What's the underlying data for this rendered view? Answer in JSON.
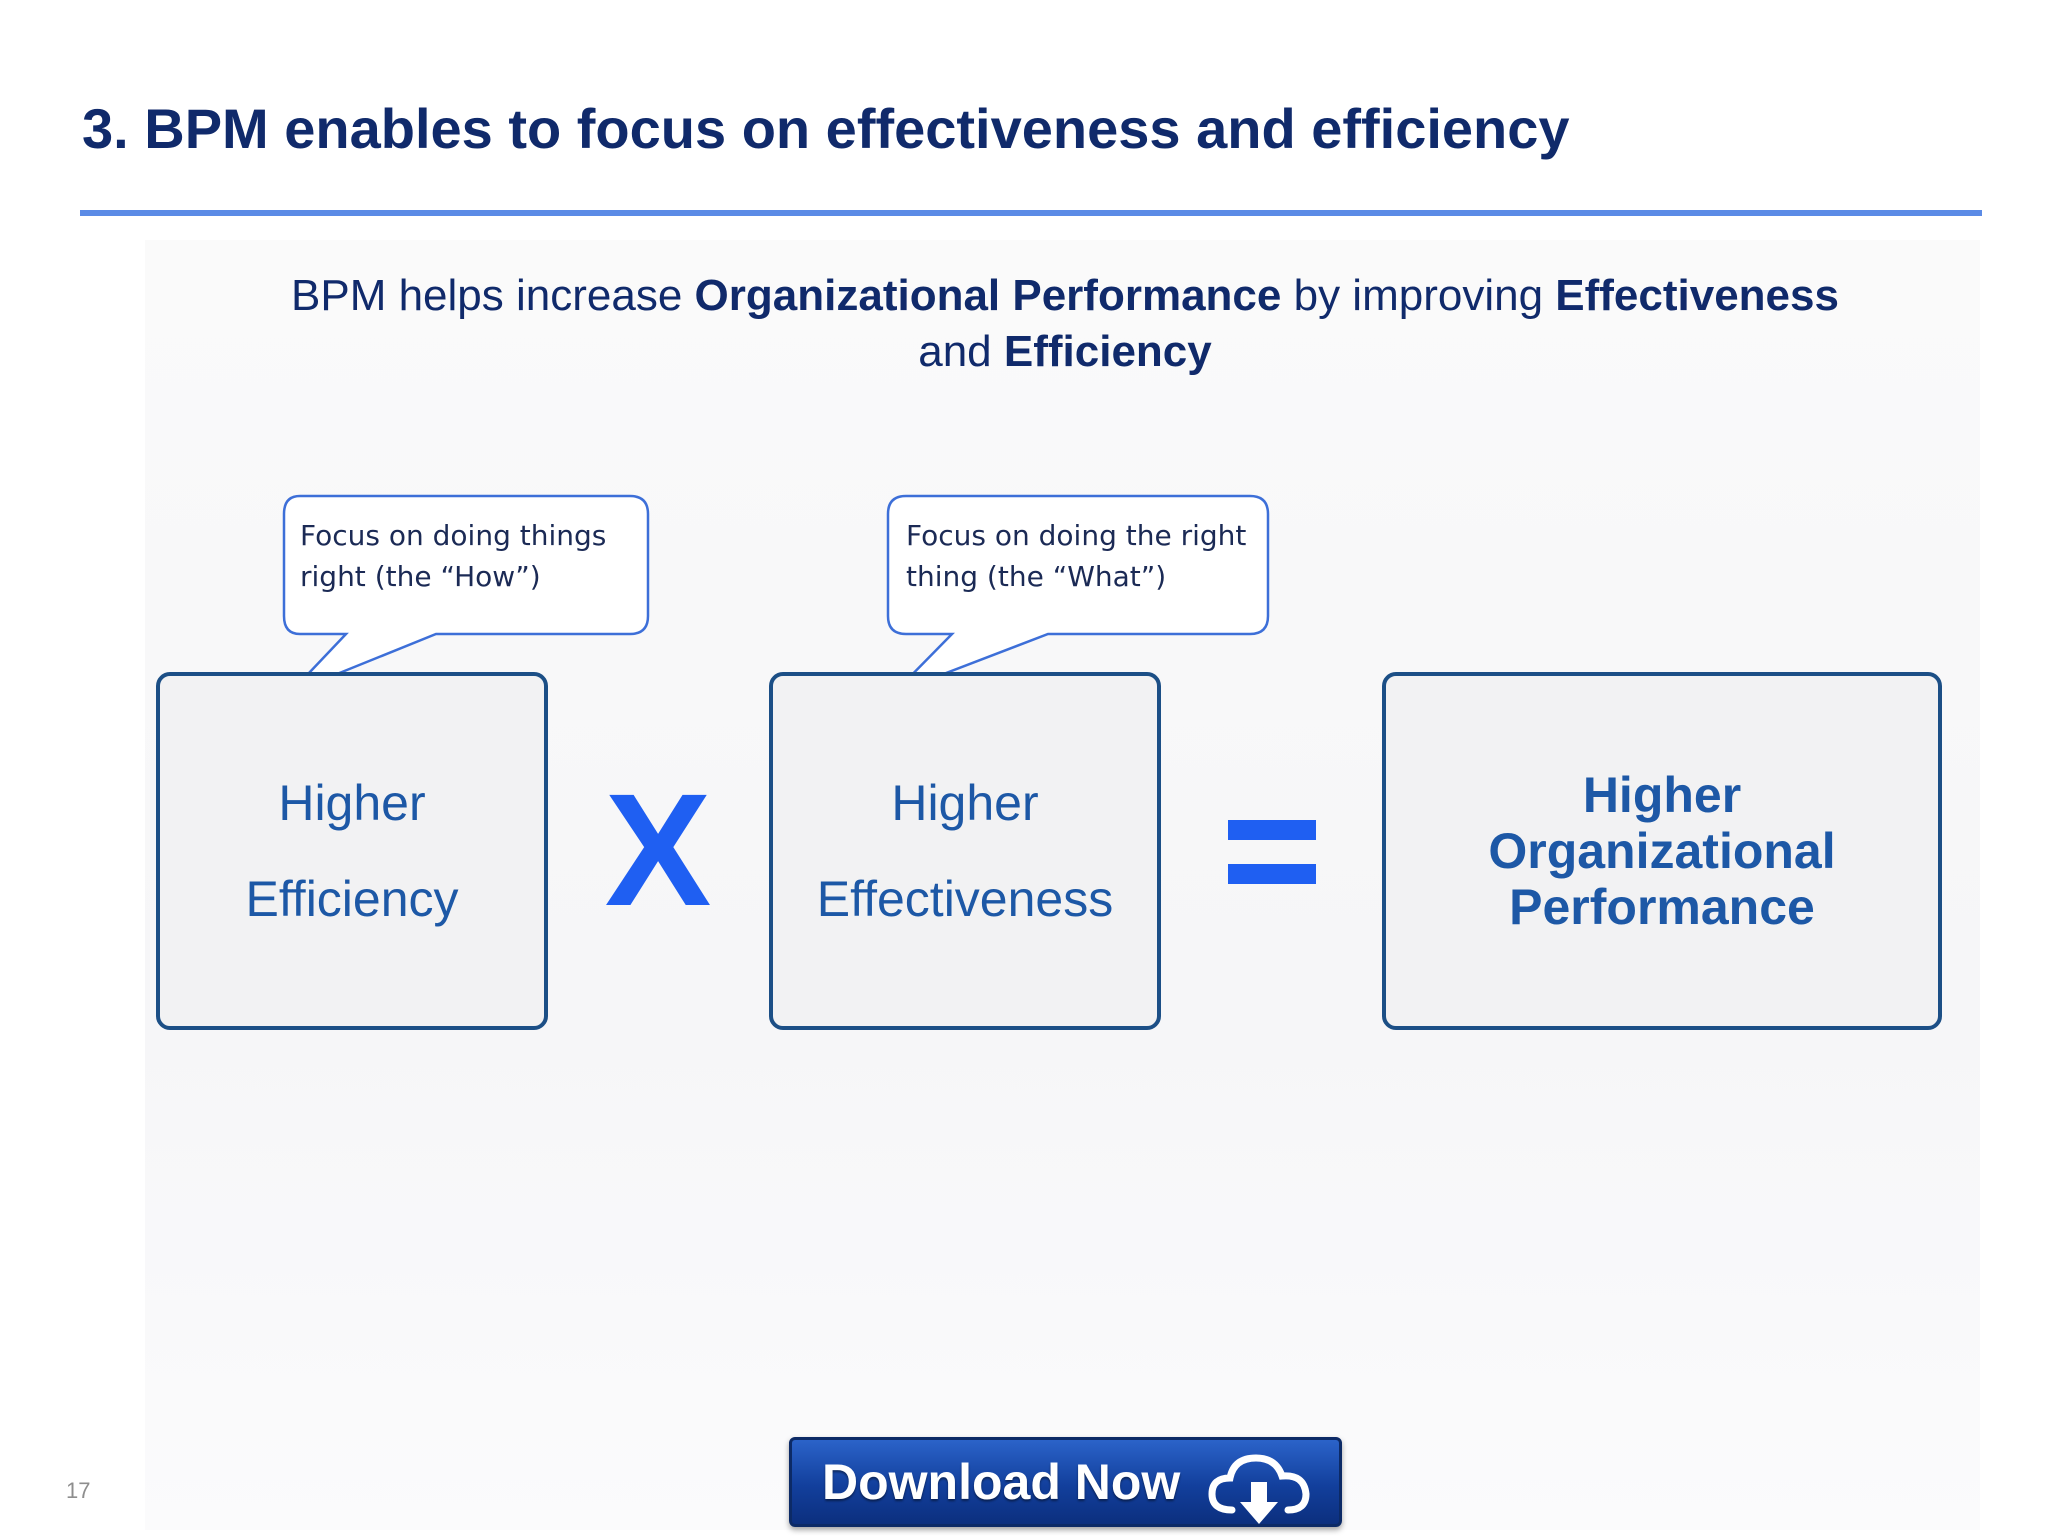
{
  "title": "3. BPM enables to focus on effectiveness and efficiency",
  "subtitle": {
    "part1": "BPM helps increase ",
    "bold1": "Organizational Performance",
    "part2": " by improving ",
    "bold2": "Effectiveness",
    "part3": "and ",
    "bold3": "Efficiency"
  },
  "callouts": [
    {
      "line1": "Focus on doing things",
      "line2": "right (the “How”)"
    },
    {
      "line1": "Focus on doing the right",
      "line2": "thing (the “What”)"
    }
  ],
  "boxes": {
    "efficiency": {
      "line1": "Higher",
      "line2": "Efficiency"
    },
    "effectiveness": {
      "line1": "Higher",
      "line2": "Effectiveness"
    },
    "performance": {
      "line1": "Higher",
      "line2": "Organizational",
      "line3": "Performance"
    }
  },
  "operators": {
    "times": "X",
    "equals": "="
  },
  "page_number": "17",
  "download_button": {
    "label": "Download Now",
    "icon": "cloud-download-icon"
  },
  "colors": {
    "title": "#102a6b",
    "rule": "#5b8be6",
    "box_border": "#1c4f86",
    "box_text": "#1d58a6",
    "operator": "#1f5ff2",
    "callout_border": "#3d6fd8"
  }
}
